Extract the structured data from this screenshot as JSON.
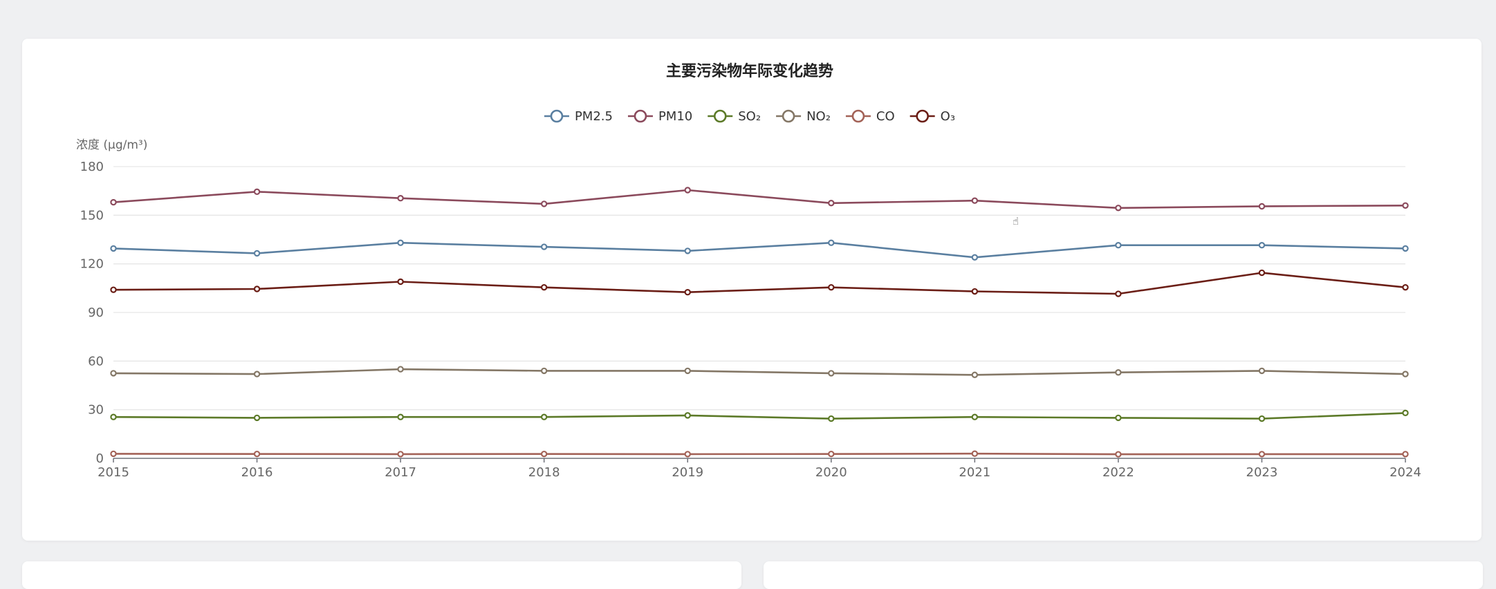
{
  "chart_data": {
    "type": "line",
    "title": "主要污染物年际变化趋势",
    "ylabel": "浓度 (μg/m³)",
    "xlabel": "",
    "ylim": [
      0,
      180
    ],
    "yticks": [
      0,
      30,
      60,
      90,
      120,
      150,
      180
    ],
    "categories": [
      "2015",
      "2016",
      "2017",
      "2018",
      "2019",
      "2020",
      "2021",
      "2022",
      "2023",
      "2024"
    ],
    "grid": true,
    "legend_position": "top-center",
    "series": [
      {
        "name": "PM2.5",
        "color": "#5a7fa0",
        "values": [
          129.5,
          126.5,
          133,
          130.5,
          128,
          133,
          124,
          131.5,
          131.5,
          129.5
        ]
      },
      {
        "name": "PM10",
        "color": "#8b4a5c",
        "values": [
          158,
          164.5,
          160.5,
          157,
          165.5,
          157.5,
          159,
          154.5,
          155.5,
          156
        ]
      },
      {
        "name": "SO₂",
        "color": "#5c7a28",
        "values": [
          25.5,
          25,
          25.5,
          25.5,
          26.5,
          24.5,
          25.5,
          25,
          24.5,
          28
        ]
      },
      {
        "name": "NO₂",
        "color": "#847766",
        "values": [
          52.5,
          52,
          55,
          54,
          54,
          52.5,
          51.5,
          53,
          54,
          52
        ]
      },
      {
        "name": "CO",
        "color": "#a36257",
        "values": [
          2.8,
          2.7,
          2.6,
          2.7,
          2.6,
          2.7,
          2.9,
          2.5,
          2.6,
          2.6
        ]
      },
      {
        "name": "O₃",
        "color": "#6b1e16",
        "values": [
          104,
          104.5,
          109,
          105.5,
          102.5,
          105.5,
          103,
          101.5,
          114.5,
          105.5
        ]
      }
    ]
  }
}
